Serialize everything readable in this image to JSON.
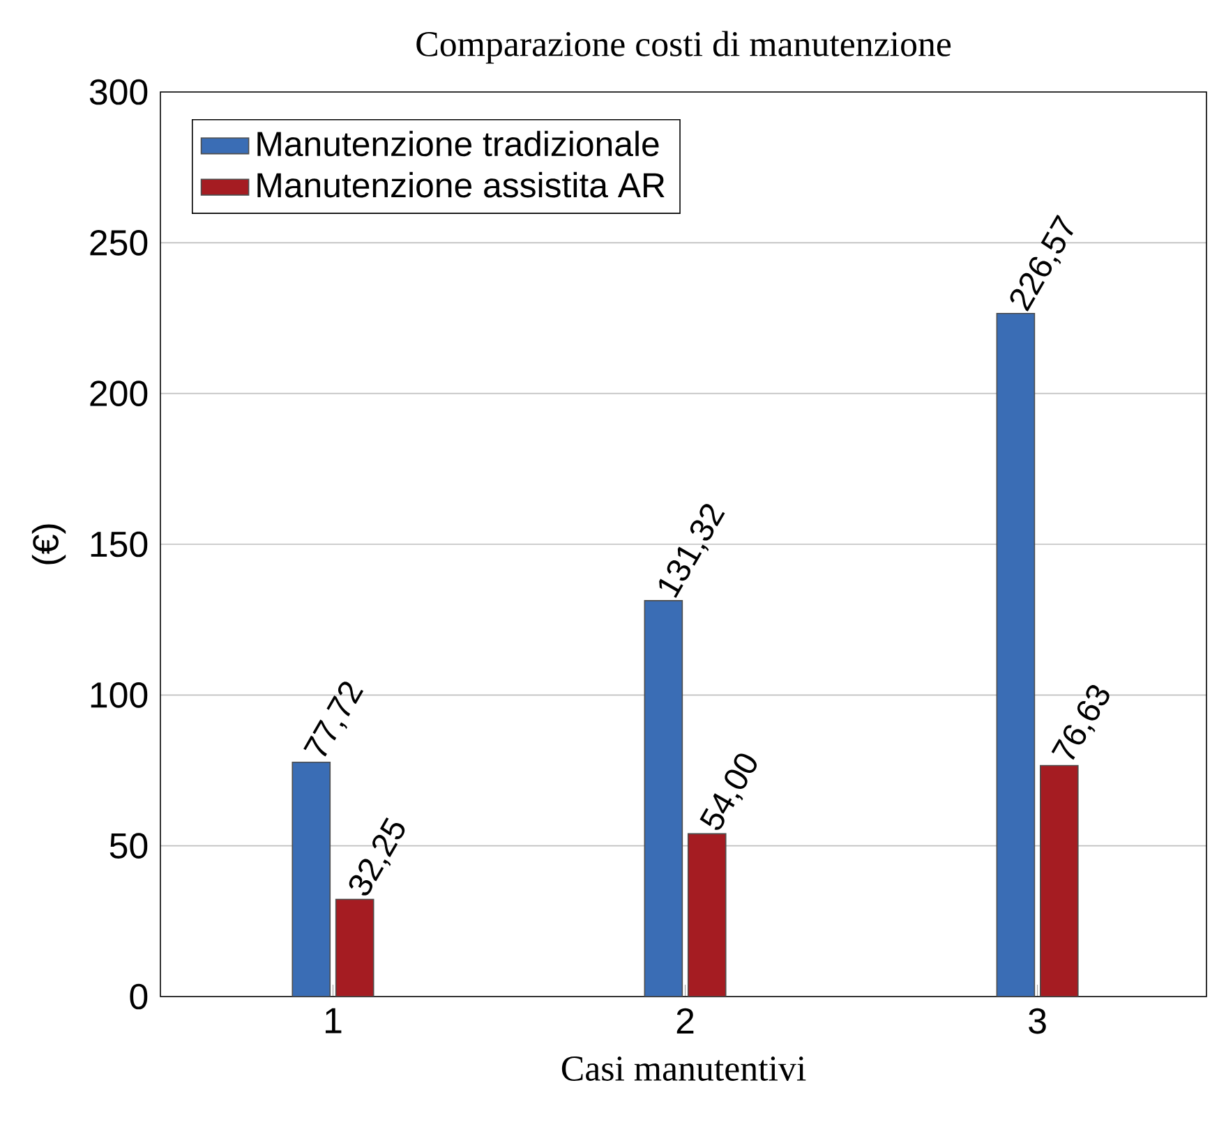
{
  "chart_data": {
    "type": "bar",
    "title": "Comparazione costi di manutenzione",
    "xlabel": "Casi manutentivi",
    "ylabel": "(€)",
    "categories": [
      "1",
      "2",
      "3"
    ],
    "series": [
      {
        "name": "Manutenzione tradizionale",
        "color": "#3a6db5",
        "values": [
          77.72,
          131.32,
          226.57
        ],
        "value_labels": [
          "77,72",
          "131,32",
          "226,57"
        ]
      },
      {
        "name": "Manutenzione assistita AR",
        "color": "#a51c22",
        "values": [
          32.25,
          54.0,
          76.63
        ],
        "value_labels": [
          "32,25",
          "54,00",
          "76,63"
        ]
      }
    ],
    "ylim": [
      0,
      300
    ],
    "yticks": [
      0,
      50,
      100,
      150,
      200,
      250,
      300
    ],
    "grid": "y",
    "legend": "top left"
  }
}
